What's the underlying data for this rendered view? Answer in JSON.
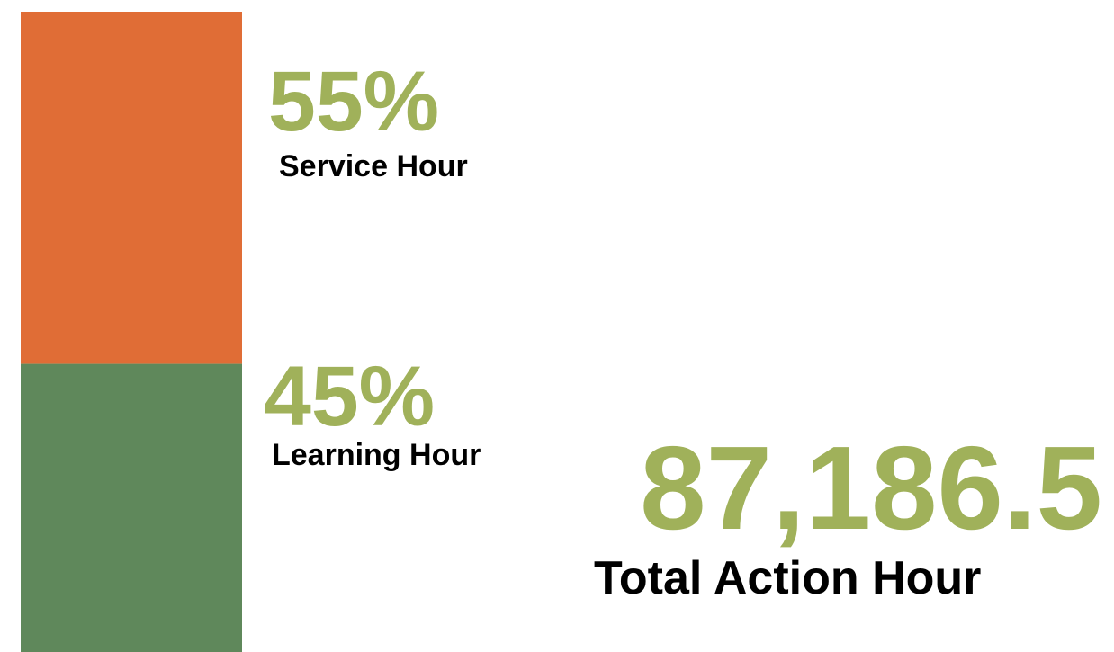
{
  "chart_data": {
    "type": "stacked-bar",
    "categories": [
      null
    ],
    "series": [
      {
        "name": "Service Hour",
        "color": "#e06d36",
        "values": [
          55
        ],
        "value_labels": [
          "55%"
        ]
      },
      {
        "name": "Learning Hour",
        "color": "#5f885b",
        "values": [
          45
        ],
        "value_labels": [
          "45%"
        ]
      }
    ],
    "label_color": "#a0b15a",
    "total": {
      "value": "87,186.5",
      "label": "Total Action Hour"
    }
  }
}
